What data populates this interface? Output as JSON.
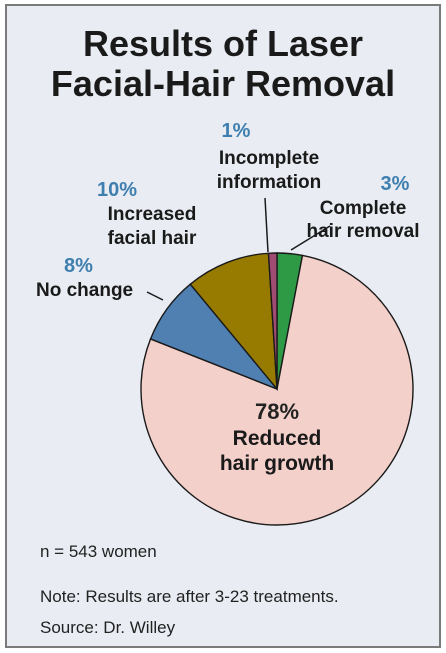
{
  "chart_data": {
    "type": "pie",
    "title": [
      "Results of Laser",
      "Facial-Hair Removal"
    ],
    "slices": [
      {
        "label": [
          "Complete",
          "hair removal"
        ],
        "percent_label": "3%",
        "value": 3,
        "color": "#2e9a45"
      },
      {
        "label": [
          "Reduced",
          "hair growth"
        ],
        "percent_label": "78%",
        "value": 78,
        "color": "#f4d0ca"
      },
      {
        "label": [
          "No change"
        ],
        "percent_label": "8%",
        "value": 8,
        "color": "#4f80b1"
      },
      {
        "label": [
          "Increased",
          "facial hair"
        ],
        "percent_label": "10%",
        "value": 10,
        "color": "#977b00"
      },
      {
        "label": [
          "Incomplete",
          "information"
        ],
        "percent_label": "1%",
        "value": 1,
        "color": "#a04c72"
      }
    ],
    "percent_color": "#3f7fb0",
    "start_angle_deg": 0,
    "direction": "clockwise"
  },
  "notes": {
    "sample": "n = 543 women",
    "note": "Note: Results are after 3-23 treatments.",
    "source": "Source: Dr. Willey"
  }
}
